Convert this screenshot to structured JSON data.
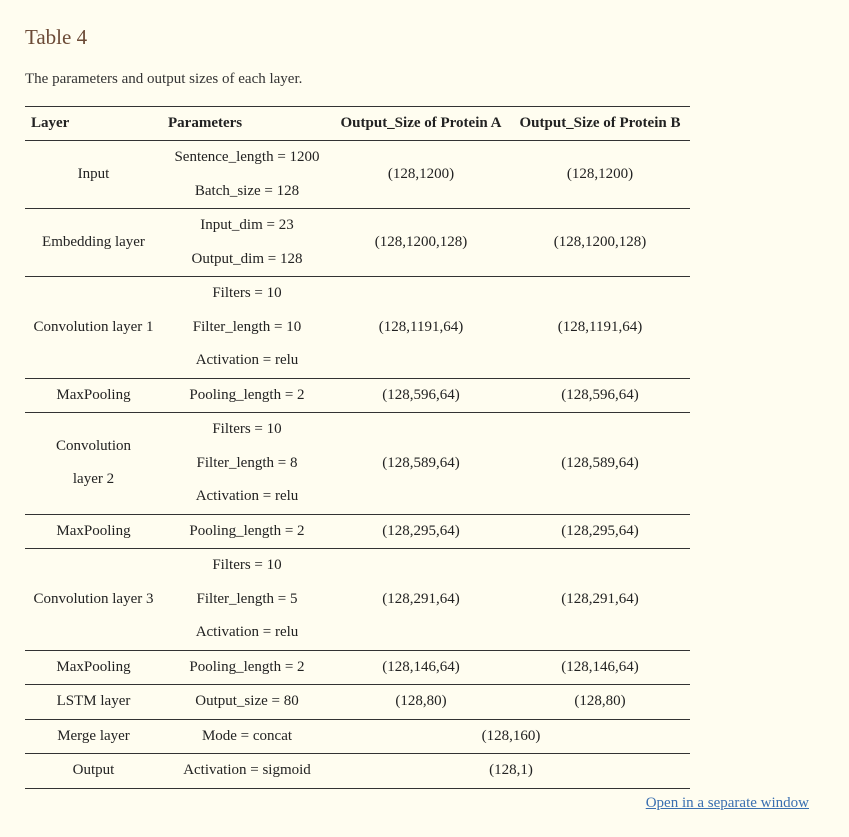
{
  "table_title": "Table 4",
  "caption": "The parameters and output sizes of each layer.",
  "headers": {
    "layer": "Layer",
    "parameters": "Parameters",
    "output_a": "Output_Size of Protein A",
    "output_b": "Output_Size of Protein B"
  },
  "rows": [
    {
      "layer": [
        "Input"
      ],
      "params": [
        "Sentence_length = 1200",
        "Batch_size = 128"
      ],
      "out_a": "(128,1200)",
      "out_b": "(128,1200)"
    },
    {
      "layer": [
        "Embedding layer"
      ],
      "params": [
        "Input_dim = 23",
        "Output_dim = 128"
      ],
      "out_a": "(128,1200,128)",
      "out_b": "(128,1200,128)"
    },
    {
      "layer": [
        "Convolution layer 1"
      ],
      "params": [
        "Filters = 10",
        "Filter_length = 10",
        "Activation = relu"
      ],
      "out_a": "(128,1191,64)",
      "out_b": "(128,1191,64)"
    },
    {
      "layer": [
        "MaxPooling"
      ],
      "params": [
        "Pooling_length = 2"
      ],
      "out_a": "(128,596,64)",
      "out_b": "(128,596,64)"
    },
    {
      "layer": [
        "Convolution",
        "layer 2"
      ],
      "params": [
        "Filters = 10",
        "Filter_length = 8",
        "Activation = relu"
      ],
      "out_a": "(128,589,64)",
      "out_b": "(128,589,64)"
    },
    {
      "layer": [
        "MaxPooling"
      ],
      "params": [
        "Pooling_length = 2"
      ],
      "out_a": "(128,295,64)",
      "out_b": "(128,295,64)"
    },
    {
      "layer": [
        "Convolution layer 3"
      ],
      "params": [
        "Filters = 10",
        "Filter_length = 5",
        "Activation = relu"
      ],
      "out_a": "(128,291,64)",
      "out_b": "(128,291,64)"
    },
    {
      "layer": [
        "MaxPooling"
      ],
      "params": [
        "Pooling_length = 2"
      ],
      "out_a": "(128,146,64)",
      "out_b": "(128,146,64)"
    },
    {
      "layer": [
        "LSTM layer"
      ],
      "params": [
        "Output_size = 80"
      ],
      "out_a": "(128,80)",
      "out_b": "(128,80)"
    },
    {
      "layer": [
        "Merge layer"
      ],
      "params": [
        "Mode = concat"
      ],
      "out_merged": "(128,160)"
    },
    {
      "layer": [
        "Output"
      ],
      "params": [
        "Activation = sigmoid"
      ],
      "out_merged": "(128,1)"
    }
  ],
  "open_link": "Open in a separate window"
}
